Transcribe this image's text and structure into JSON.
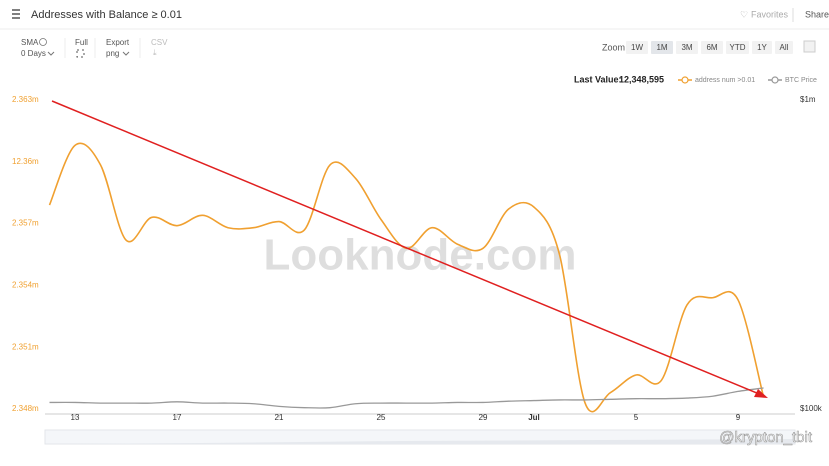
{
  "header": {
    "title": "Addresses with Balance ≥ 0.01",
    "favorites": "Favorites",
    "share": "Share"
  },
  "toolbar": {
    "sma_label": "SMA",
    "sma_value": "0 Days",
    "full": "Full",
    "export_label": "Export",
    "export_value": "png",
    "csv": "CSV",
    "zoom_label": "Zoom",
    "zoom_buttons": [
      "1W",
      "1M",
      "3M",
      "6M",
      "YTD",
      "1Y",
      "All"
    ]
  },
  "last_value_label": "Last Value:",
  "last_value": "12,348,595",
  "watermark": "Looknode.com",
  "credit": "@krypton_tbit",
  "chart_data": {
    "type": "line",
    "categories": [
      null,
      "13",
      null,
      null,
      null,
      "17",
      null,
      null,
      null,
      "21",
      null,
      null,
      null,
      "25",
      null,
      null,
      null,
      "29",
      null,
      "Jul",
      null,
      null,
      null,
      "5",
      null,
      null,
      null,
      "9",
      null
    ],
    "series": [
      {
        "name": "address num >0.01",
        "color": "#f0a030",
        "values": [
          12357900,
          12360800,
          12359850,
          12356200,
          12357300,
          12356900,
          12357400,
          12356800,
          12356800,
          12357100,
          12356700,
          12359850,
          12359200,
          12357200,
          12355800,
          12356800,
          12356000,
          12355800,
          12357700,
          12357800,
          12355500,
          12348300,
          12348800,
          12349650,
          12349400,
          12353050,
          12353400,
          12353300,
          12348595
        ]
      },
      {
        "name": "BTC Price",
        "color": "#999999",
        "axis": "y2",
        "values": [
          105000,
          105000,
          104500,
          104500,
          104500,
          105500,
          104500,
          104500,
          104000,
          102000,
          101000,
          101000,
          104000,
          104500,
          104500,
          104500,
          105000,
          105000,
          106000,
          106500,
          107000,
          107000,
          107500,
          108000,
          108000,
          108500,
          110000,
          114000,
          117000
        ]
      }
    ],
    "ylim": [
      12348000,
      12363000
    ],
    "yticks": [
      {
        "value": 12363000,
        "label": "2.363m"
      },
      {
        "value": 12360000,
        "label": "12.36m"
      },
      {
        "value": 12357000,
        "label": "2.357m"
      },
      {
        "value": 12354000,
        "label": "2.354m"
      },
      {
        "value": 12351000,
        "label": "2.351m"
      },
      {
        "value": 12348000,
        "label": "2.348m"
      }
    ],
    "y2lim": [
      100000,
      1000000
    ],
    "y2log": true,
    "y2ticks": [
      {
        "value": 1000000,
        "label": "$1m"
      },
      {
        "value": 100000,
        "label": "$100k"
      }
    ],
    "grid": false
  }
}
